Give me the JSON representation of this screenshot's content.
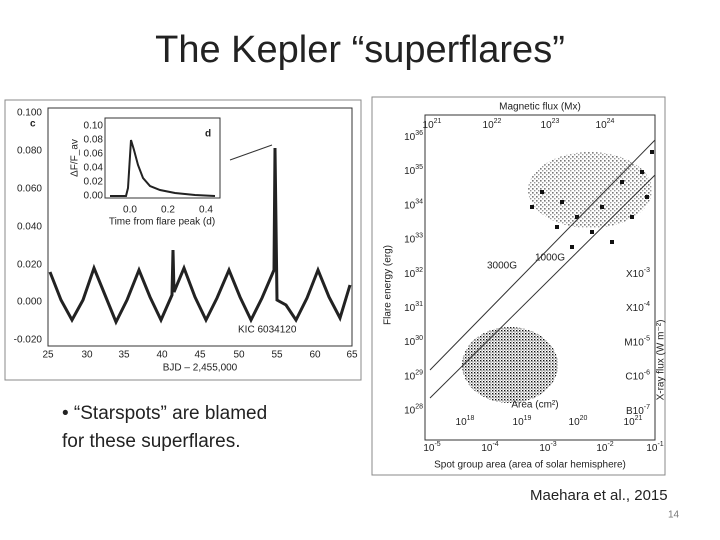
{
  "title": "The Kepler “superflares”",
  "left_figure": {
    "panel_label": "c",
    "yticks": [
      "0.100",
      "0.080",
      "0.060",
      "0.040",
      "0.020",
      "0.000",
      "-0.020"
    ],
    "xticks": [
      "25",
      "30",
      "35",
      "40",
      "45",
      "50",
      "55",
      "60",
      "65"
    ],
    "xlabel": "BJD – 2,455,000",
    "star": "KIC 6034120",
    "inset": {
      "panel_label": "d",
      "yticks": [
        "0.10",
        "0.08",
        "0.06",
        "0.04",
        "0.02",
        "0.00"
      ],
      "xticks": [
        "0.0",
        "0.2",
        "0.4"
      ],
      "xlabel": "Time from flare peak (d)",
      "ylabel": "ΔF/F_av"
    }
  },
  "right_figure": {
    "top_label": "Magnetic flux (Mx)",
    "top_ticks": [
      {
        "base": "10",
        "exp": "21"
      },
      {
        "base": "10",
        "exp": "22"
      },
      {
        "base": "10",
        "exp": "23"
      },
      {
        "base": "10",
        "exp": "24"
      }
    ],
    "ylabel": "Flare energy (erg)",
    "yticks": [
      {
        "base": "10",
        "exp": "36"
      },
      {
        "base": "10",
        "exp": "35"
      },
      {
        "base": "10",
        "exp": "34"
      },
      {
        "base": "10",
        "exp": "33"
      },
      {
        "base": "10",
        "exp": "32"
      },
      {
        "base": "10",
        "exp": "31"
      },
      {
        "base": "10",
        "exp": "30"
      },
      {
        "base": "10",
        "exp": "29"
      },
      {
        "base": "10",
        "exp": "28"
      }
    ],
    "y2label": "X-ray flux (W m⁻²)",
    "y2ticks": [
      {
        "letter": "X",
        "base": "10",
        "exp": "-3"
      },
      {
        "letter": "X",
        "base": "10",
        "exp": "-4"
      },
      {
        "letter": "M",
        "base": "10",
        "exp": "-5"
      },
      {
        "letter": "C",
        "base": "10",
        "exp": "-6"
      },
      {
        "letter": "B",
        "base": "10",
        "exp": "-7"
      }
    ],
    "area_label": "Area (cm²)",
    "area_ticks": [
      {
        "base": "10",
        "exp": "18"
      },
      {
        "base": "10",
        "exp": "19"
      },
      {
        "base": "10",
        "exp": "20"
      },
      {
        "base": "10",
        "exp": "21"
      }
    ],
    "xticks": [
      {
        "base": "10",
        "exp": "-5"
      },
      {
        "base": "10",
        "exp": "-4"
      },
      {
        "base": "10",
        "exp": "-3"
      },
      {
        "base": "10",
        "exp": "-2"
      },
      {
        "base": "10",
        "exp": "-1"
      }
    ],
    "xlabel": "Spot group area (area of solar hemisphere)",
    "line_labels": [
      "3000G",
      "1000G"
    ]
  },
  "bullet": [
    "• “Starspots” are blamed",
    "for these superflares."
  ],
  "citation": "Maehara et al., 2015",
  "page_number": "14"
}
